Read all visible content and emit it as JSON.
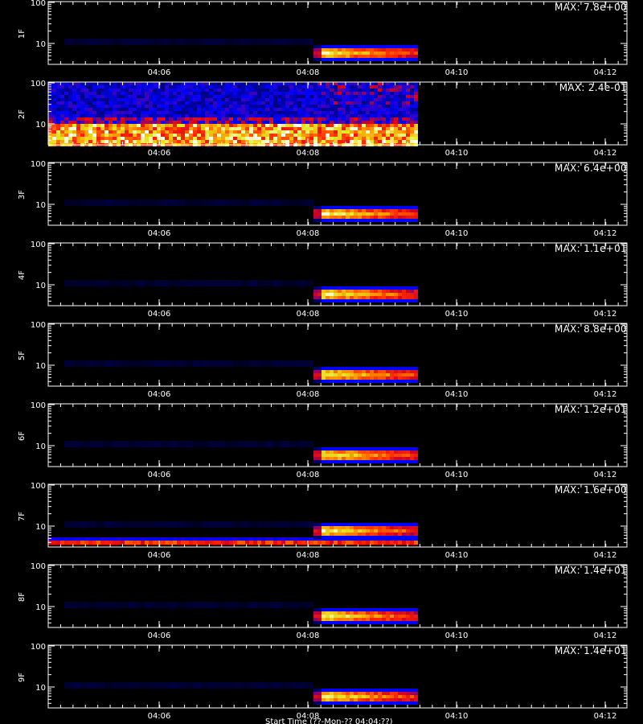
{
  "chart_data": {
    "type": "heatmap",
    "shared_x_ticks": [
      "04:06",
      "04:08",
      "04:10",
      "04:12"
    ],
    "y_ticks": [
      "10",
      "100"
    ],
    "y_scale": "log",
    "panels": [
      {
        "ylabel": "1F",
        "max_label": "MAX: 7.8e+00",
        "pattern": "burst"
      },
      {
        "ylabel": "2F",
        "max_label": "MAX: 2.4e-01",
        "pattern": "noisy"
      },
      {
        "ylabel": "3F",
        "max_label": "MAX: 6.4e+00",
        "pattern": "burst"
      },
      {
        "ylabel": "4F",
        "max_label": "MAX: 1.1e+01",
        "pattern": "burst"
      },
      {
        "ylabel": "5F",
        "max_label": "MAX: 8.8e+00",
        "pattern": "burst"
      },
      {
        "ylabel": "6F",
        "max_label": "MAX: 1.2e+01",
        "pattern": "burst"
      },
      {
        "ylabel": "7F",
        "max_label": "MAX: 1.6e+00",
        "pattern": "burst_low_band"
      },
      {
        "ylabel": "8F",
        "max_label": "MAX: 1.4e+01",
        "pattern": "burst"
      },
      {
        "ylabel": "9F",
        "max_label": "MAX: 1.4e+01",
        "pattern": "burst"
      }
    ],
    "bottom_caption": "Start Time (??-Mon-?? 04:04:??)"
  }
}
